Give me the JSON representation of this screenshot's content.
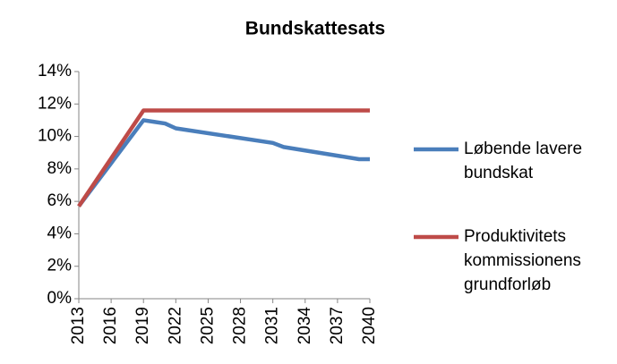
{
  "chart_data": {
    "type": "line",
    "title": "Bundskattesats",
    "xlim": [
      2013,
      2040
    ],
    "xticks": [
      2013,
      2016,
      2019,
      2022,
      2025,
      2028,
      2031,
      2034,
      2037,
      2040
    ],
    "ylim": [
      0,
      14
    ],
    "yticks": [
      {
        "value": 0,
        "label": "0%"
      },
      {
        "value": 2,
        "label": "2%"
      },
      {
        "value": 4,
        "label": "4%"
      },
      {
        "value": 6,
        "label": "6%"
      },
      {
        "value": 8,
        "label": "8%"
      },
      {
        "value": 10,
        "label": "10%"
      },
      {
        "value": 12,
        "label": "12%"
      },
      {
        "value": 14,
        "label": "14%"
      }
    ],
    "grid": false,
    "series": [
      {
        "name": "Løbende lavere bundskat",
        "color": "#4a7ebb",
        "x": [
          2013,
          2019,
          2020,
          2021,
          2022,
          2031,
          2032,
          2039,
          2040
        ],
        "values": [
          5.7,
          11.0,
          10.9,
          10.8,
          10.5,
          9.6,
          9.35,
          8.6,
          8.6
        ]
      },
      {
        "name": "Produktivitets kommissionens grundforløb",
        "color": "#be4b48",
        "x": [
          2013,
          2019,
          2040
        ],
        "values": [
          5.7,
          11.6,
          11.6
        ]
      }
    ]
  }
}
